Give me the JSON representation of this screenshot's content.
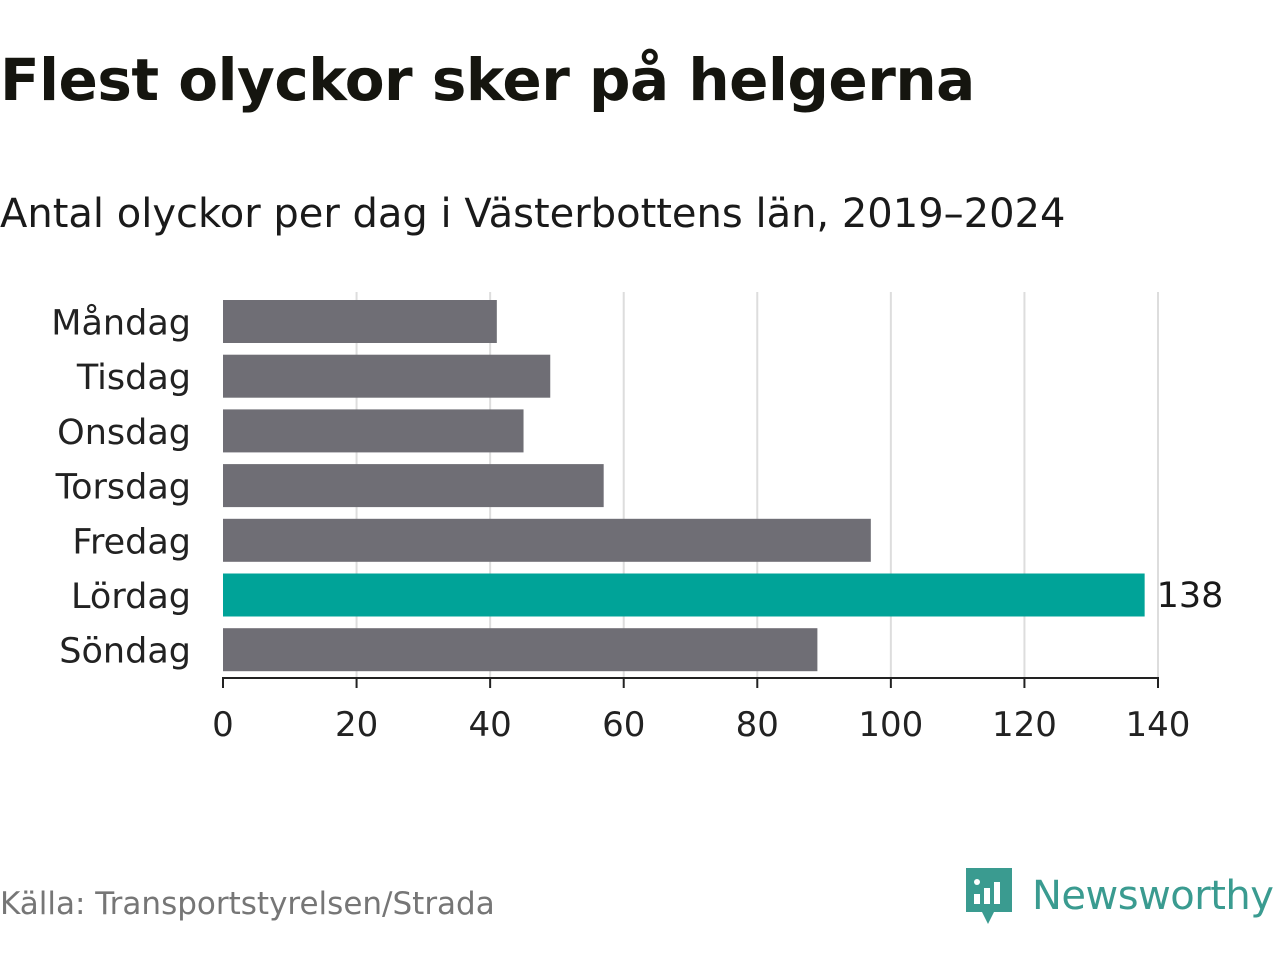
{
  "title": "Flest olyckor sker på helgerna",
  "subtitle": "Antal olyckor per dag i Västerbottens län, 2019–2024",
  "source": "Källa: Transportstyrelsen/Strada",
  "brand": {
    "name": "Newsworthy",
    "color": "#3a9b90",
    "icon": "newsworthy-logo-icon"
  },
  "colors": {
    "bar_default": "#6f6e75",
    "bar_highlight": "#00a398",
    "grid": "#dddddd",
    "axis": "#222222"
  },
  "chart_data": {
    "type": "bar",
    "orientation": "horizontal",
    "categories": [
      "Måndag",
      "Tisdag",
      "Onsdag",
      "Torsdag",
      "Fredag",
      "Lördag",
      "Söndag"
    ],
    "values": [
      41,
      49,
      45,
      57,
      97,
      138,
      89
    ],
    "highlight": "Lördag",
    "data_labels": [
      {
        "category": "Lördag",
        "label": "138"
      }
    ],
    "xlim": [
      0,
      140
    ],
    "xticks": [
      0,
      20,
      40,
      60,
      80,
      100,
      120,
      140
    ],
    "grid": true,
    "legend": "none"
  }
}
